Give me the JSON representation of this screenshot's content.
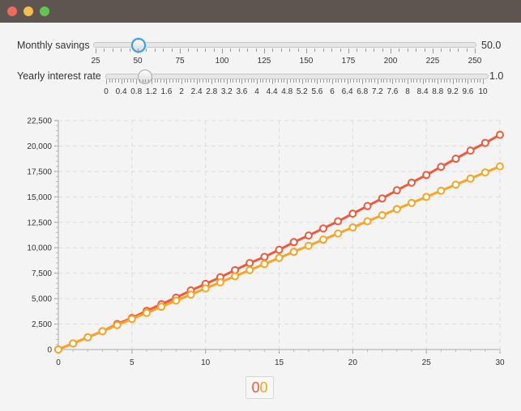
{
  "window": {
    "title": ""
  },
  "sliders": [
    {
      "label": "Monthly savings",
      "value_text": "50.0",
      "value": 50,
      "min": 25,
      "max": 250,
      "tick_labels": [
        "25",
        "50",
        "75",
        "100",
        "125",
        "150",
        "175",
        "200",
        "225",
        "250"
      ],
      "focused": true
    },
    {
      "label": "Yearly interest rate",
      "value_text": "1.0",
      "value": 1.0,
      "min": 0,
      "max": 10,
      "tick_labels": [
        "0",
        "0.4",
        "0.8",
        "1.2",
        "1.6",
        "2",
        "2.4",
        "2.8",
        "3.2",
        "3.6",
        "4",
        "4.4",
        "4.8",
        "5.2",
        "5.6",
        "6",
        "6.4",
        "6.8",
        "7.2",
        "7.6",
        "8",
        "8.4",
        "8.8",
        "9.2",
        "9.6",
        "10"
      ],
      "focused": false
    }
  ],
  "chart_data": {
    "type": "line",
    "title": "",
    "xlabel": "",
    "ylabel": "",
    "xlim": [
      0,
      30
    ],
    "ylim": [
      0,
      22500
    ],
    "x_ticks": [
      "0",
      "5",
      "10",
      "15",
      "20",
      "25",
      "30"
    ],
    "y_ticks": [
      "0",
      "2,500",
      "5,000",
      "7,500",
      "10,000",
      "12,500",
      "15,000",
      "17,500",
      "20,000",
      "22,500"
    ],
    "grid": true,
    "x": [
      0,
      1,
      2,
      3,
      4,
      5,
      6,
      7,
      8,
      9,
      10,
      11,
      12,
      13,
      14,
      15,
      16,
      16,
      17,
      18,
      19,
      20,
      21,
      22,
      23,
      24,
      25,
      26,
      27,
      28,
      29,
      30
    ],
    "series": [
      {
        "color": "#f05a3c",
        "values": [
          0,
          600,
          1200,
          1800,
          2500,
          3100,
          3800,
          4450,
          5100,
          5800,
          6450,
          7100,
          7800,
          8500,
          9100,
          9800,
          10550,
          10550,
          11200,
          11900,
          12600,
          13350,
          14100,
          14850,
          15650,
          16400,
          17150,
          17950,
          18750,
          19550,
          20300,
          21100
        ]
      },
      {
        "color": "#f6a625",
        "values": [
          0,
          600,
          1200,
          1800,
          2400,
          3000,
          3600,
          4200,
          4800,
          5400,
          6000,
          6600,
          7200,
          7800,
          8400,
          9000,
          9600,
          9600,
          10200,
          10800,
          11400,
          12000,
          12600,
          13200,
          13800,
          14400,
          15000,
          15600,
          16200,
          16800,
          17400,
          18000
        ]
      }
    ]
  },
  "legend": {
    "symbols": [
      "0",
      "0"
    ]
  }
}
